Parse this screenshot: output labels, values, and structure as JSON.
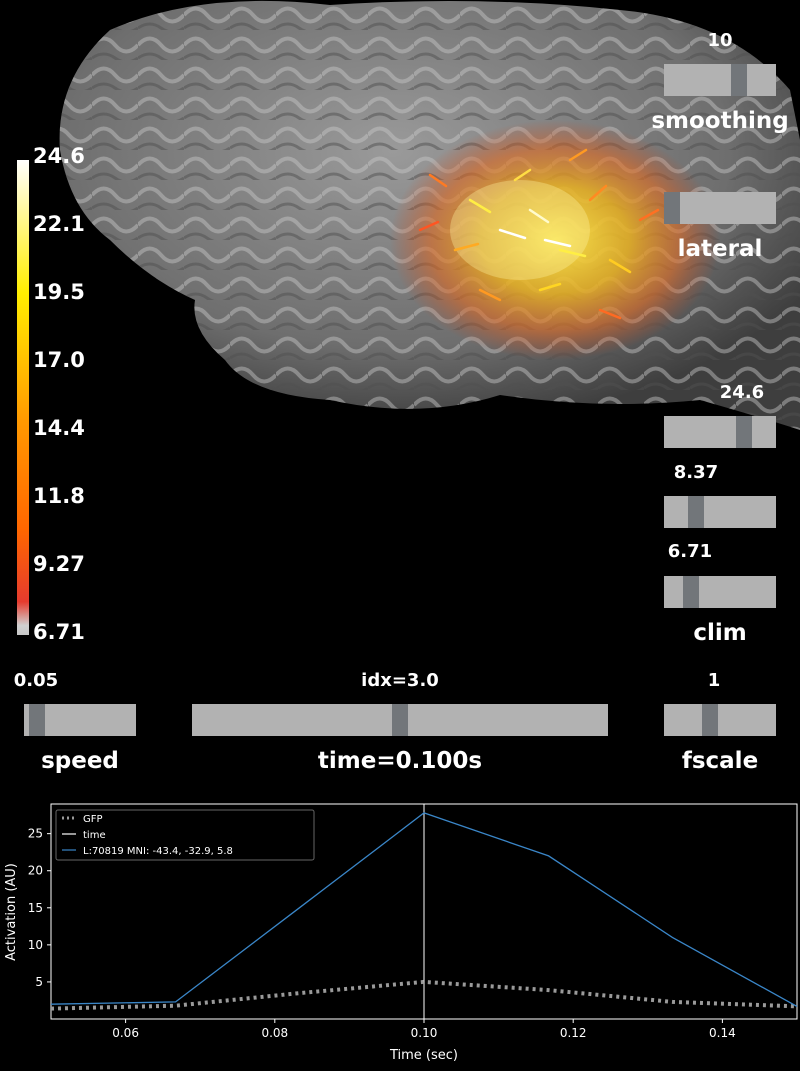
{
  "colorbar": {
    "ticks": [
      "24.6",
      "22.1",
      "19.5",
      "17.0",
      "14.4",
      "11.8",
      "9.27",
      "6.71"
    ]
  },
  "sliders": {
    "smoothing": {
      "label": "smoothing",
      "value": "10",
      "fraction": 0.7
    },
    "orientation": {
      "label": "lateral",
      "fraction": 0.0
    },
    "clim_high": {
      "value": "24.6",
      "fraction": 0.75
    },
    "clim_mid": {
      "value": "8.37",
      "fraction": 0.25
    },
    "clim_low": {
      "value": "6.71",
      "fraction": 0.2
    },
    "clim_label": "clim",
    "speed": {
      "label": "speed",
      "value": "0.05",
      "fraction": 0.05
    },
    "time": {
      "label": "time=0.100s",
      "value": "idx=3.0",
      "fraction": 0.5
    },
    "fscale": {
      "label": "fscale",
      "value": "1",
      "fraction": 0.4
    }
  },
  "chart_data": {
    "type": "line",
    "xlabel": "Time (sec)",
    "ylabel": "Activation (AU)",
    "xlim": [
      0.05,
      0.15
    ],
    "ylim": [
      0,
      29
    ],
    "xticks": [
      "0.06",
      "0.08",
      "0.10",
      "0.12",
      "0.14"
    ],
    "yticks": [
      "5",
      "10",
      "15",
      "20",
      "25"
    ],
    "time_marker": 0.1,
    "legend_position": "upper-left",
    "series": [
      {
        "name": "GFP",
        "style": "dotted",
        "color": "#9a9a9a",
        "x": [
          0.05,
          0.0667,
          0.0833,
          0.1,
          0.1167,
          0.1333,
          0.15
        ],
        "y": [
          1.4,
          1.8,
          3.5,
          5.0,
          3.9,
          2.3,
          1.7
        ]
      },
      {
        "name": "time",
        "style": "solid",
        "color": "#ffffff",
        "x": [],
        "y": []
      },
      {
        "name": "L:70819  MNI: -43.4, -32.9,   5.8",
        "style": "solid",
        "color": "#3a86c8",
        "x": [
          0.05,
          0.0667,
          0.0833,
          0.1,
          0.1167,
          0.1333,
          0.15
        ],
        "y": [
          2.0,
          2.3,
          15.0,
          27.8,
          22.0,
          11.0,
          1.7
        ]
      }
    ]
  }
}
